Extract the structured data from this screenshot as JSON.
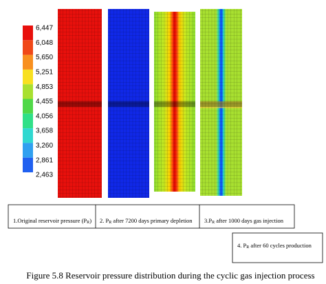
{
  "legend": {
    "labels": [
      "6,447",
      "6,048",
      "5,650",
      "5,251",
      "4,853",
      "4,455",
      "4,056",
      "3,658",
      "3,260",
      "2,861",
      "2,463"
    ]
  },
  "panels": [
    {
      "caption": [
        "1.Original reservoir pressure (P",
        "R",
        ")"
      ]
    },
    {
      "caption": [
        "2. P",
        "R",
        " after 7200 days primary depletion"
      ]
    },
    {
      "caption": [
        "3.P",
        "R",
        " after 1000  days gas injection"
      ]
    },
    {
      "caption": [
        "4. P",
        "R",
        " after 60 cycles production"
      ]
    }
  ],
  "figure_caption": "Figure 5.8 Reservoir pressure distribution during the cyclic gas injection process"
}
